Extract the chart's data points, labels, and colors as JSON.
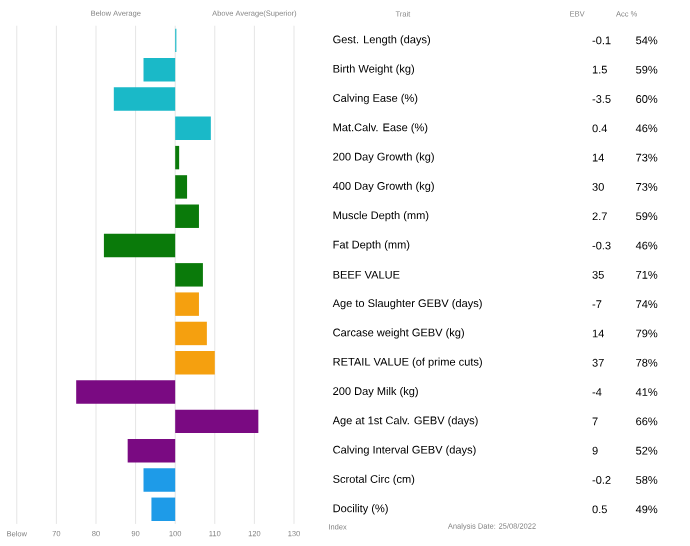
{
  "chart_data": {
    "type": "bar",
    "orientation": "horizontal",
    "categories": [
      "Gest. Length (days)",
      "Birth Weight (kg)",
      "Calving Ease (%)",
      "Mat.Calv. Ease (%)",
      "200 Day Growth (kg)",
      "400 Day Growth (kg)",
      "Muscle Depth (mm)",
      "Fat Depth (mm)",
      "BEEF VALUE",
      "Age to Slaughter GEBV (days)",
      "Carcase weight GEBV (kg)",
      "RETAIL VALUE (of prime cuts)",
      "200 Day Milk (kg)",
      "Age at 1st Calv. GEBV (days)",
      "Calving Interval GEBV (days)",
      "Scrotal Circ (cm)",
      "Docility (%)"
    ],
    "base": [
      100,
      100,
      100,
      100,
      100,
      100,
      100,
      100,
      100,
      100,
      100,
      100,
      100,
      100,
      100,
      100,
      100
    ],
    "values": [
      0.3,
      -8,
      -15.5,
      9,
      1,
      3,
      6,
      -18,
      7,
      6,
      8,
      10,
      -25,
      21,
      -12,
      -8,
      -6
    ],
    "colors": [
      "#1ab9c8",
      "#1ab9c8",
      "#1ab9c8",
      "#1ab9c8",
      "#0a7a0a",
      "#0a7a0a",
      "#0a7a0a",
      "#0a7a0a",
      "#0a7a0a",
      "#f5a00f",
      "#f5a00f",
      "#f5a00f",
      "#7a0a82",
      "#7a0a82",
      "#7a0a82",
      "#1e9be8",
      "#1e9be8"
    ],
    "xlim": [
      60,
      130
    ],
    "xticks": [
      {
        "value": 60,
        "label": "Below"
      },
      70,
      80,
      90,
      100,
      110,
      120,
      130
    ],
    "grid": "x",
    "annotations": [
      "Below Average",
      "Above Average(Superior)",
      "Trait",
      "EBV",
      "Acc %",
      "Index",
      "Analysis Date: 25/08/2022",
      "-0.1",
      "54%",
      "1.5",
      "59%",
      "-3.5",
      "60%",
      "0.4",
      "46%",
      "14",
      "73%",
      "30",
      "73%",
      "2.7",
      "59%",
      "-0.3",
      "46%",
      "35",
      "71%",
      "-7",
      "74%",
      "14",
      "79%",
      "37",
      "78%",
      "-4",
      "41%",
      "7",
      "66%",
      "9",
      "52%",
      "-0.2",
      "58%",
      "0.5",
      "49%"
    ]
  }
}
